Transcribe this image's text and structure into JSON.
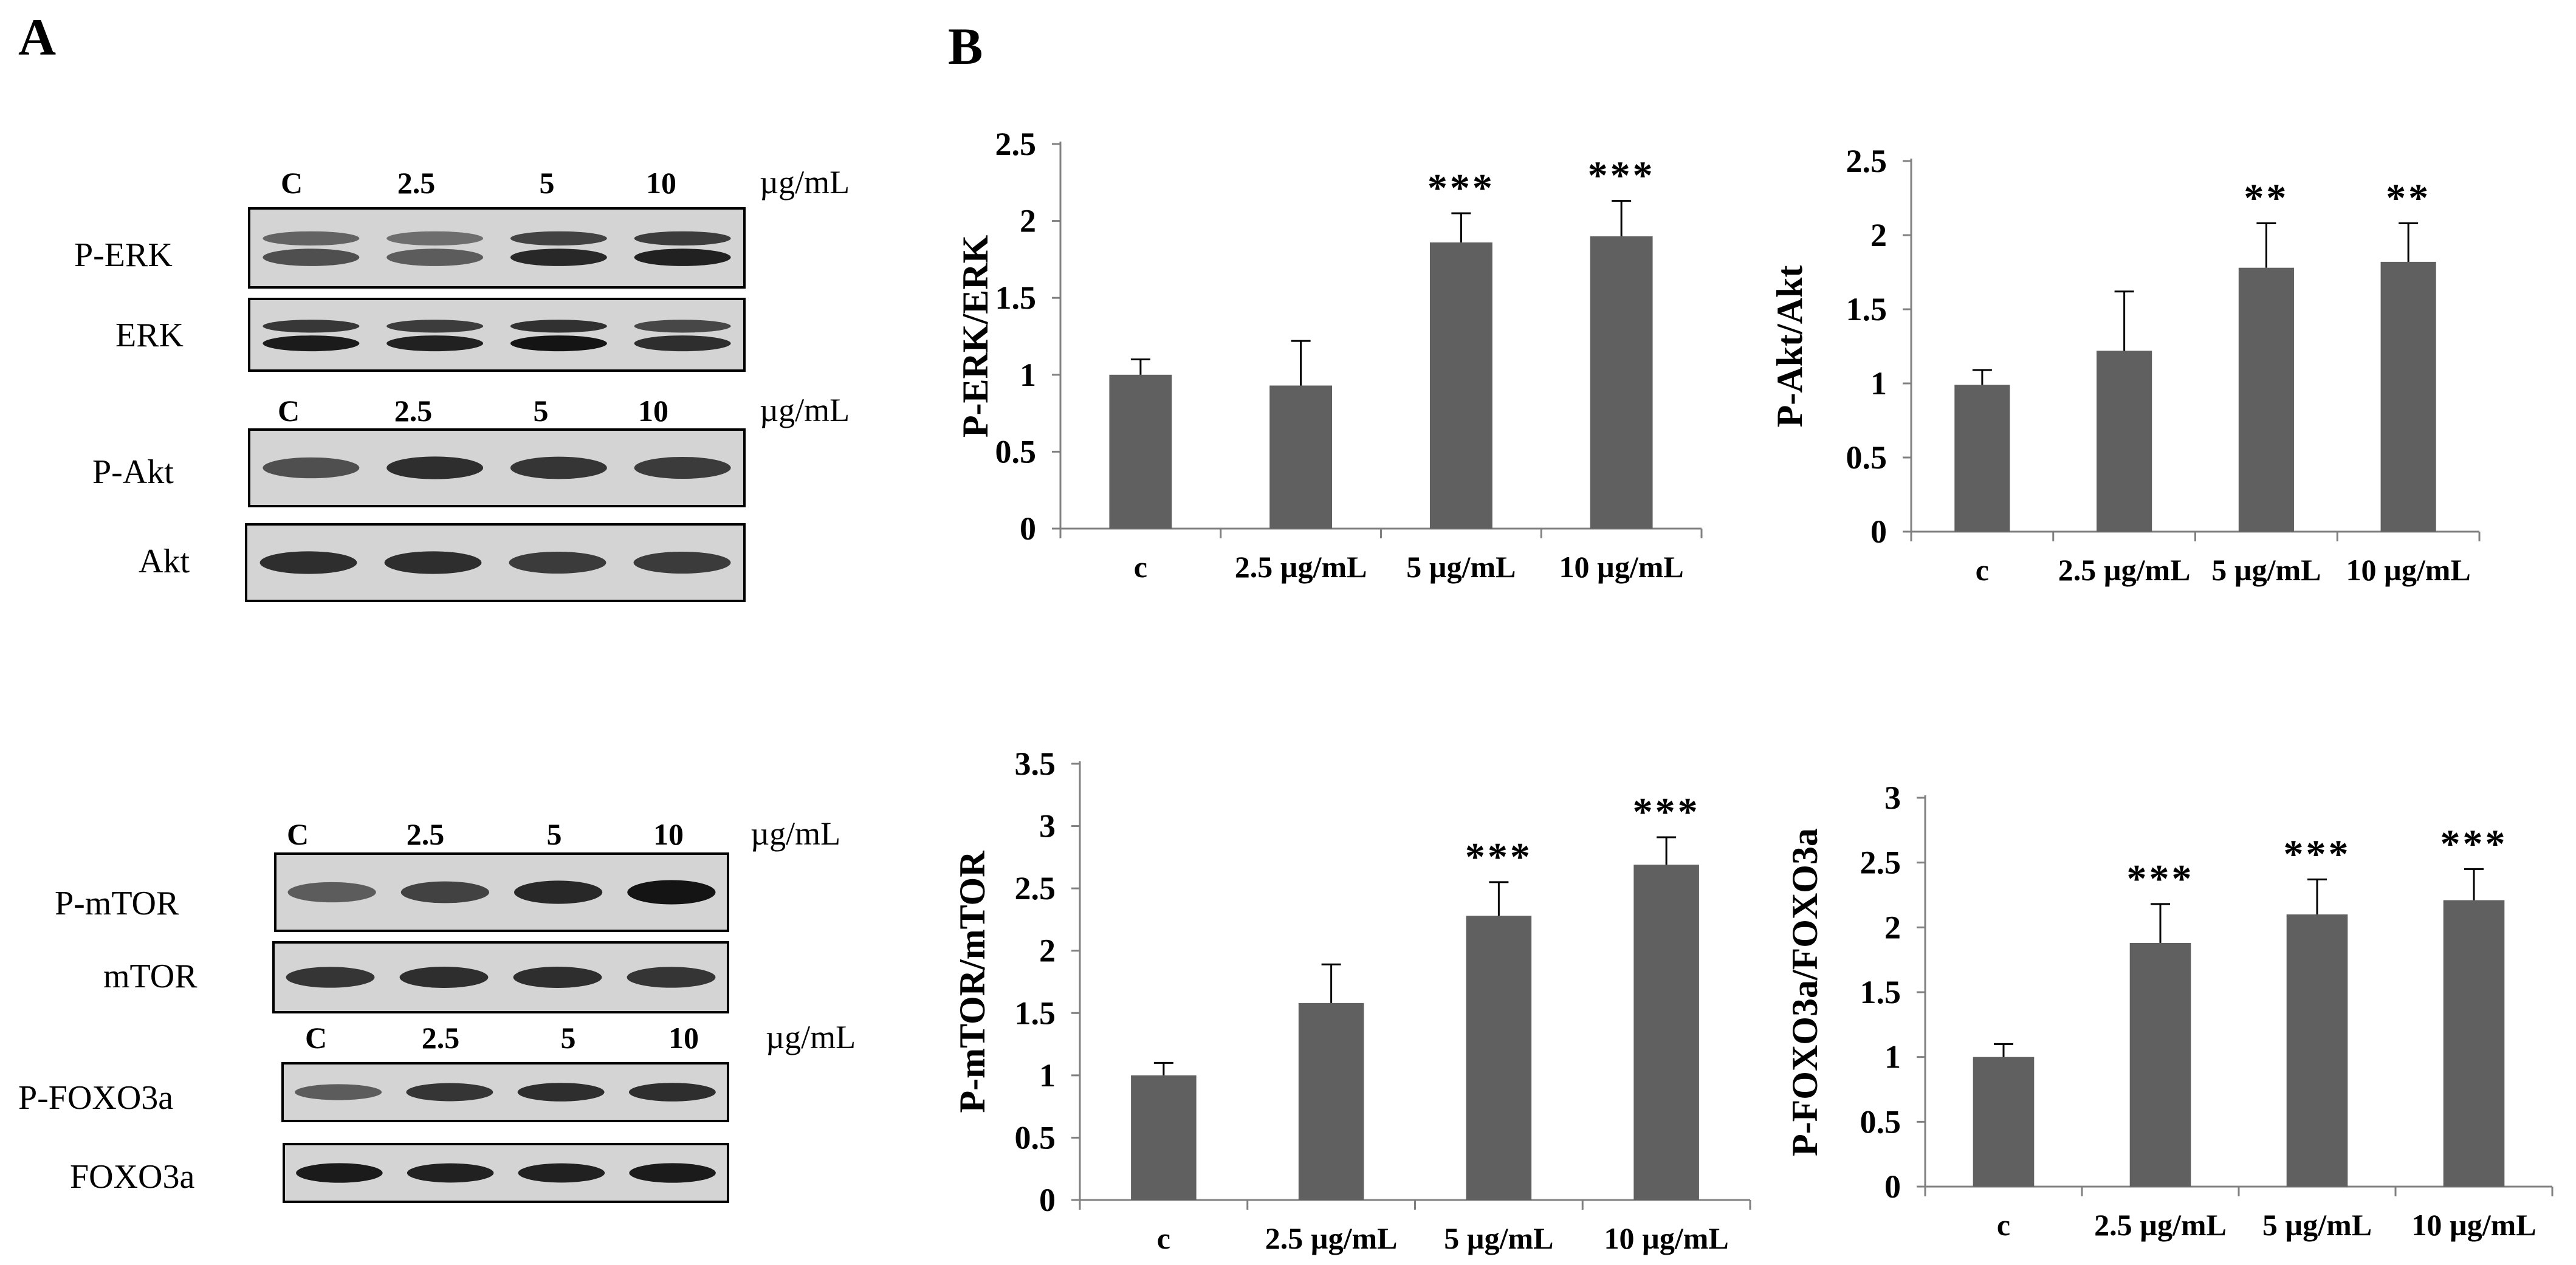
{
  "panels": {
    "a_label": "A",
    "b_label": "B"
  },
  "blots": [
    {
      "lanes": [
        "C",
        "2.5",
        "5",
        "10"
      ],
      "unit": "µg/mL",
      "bands": [
        {
          "name": "P-ERK",
          "intensity": [
            0.55,
            0.45,
            0.85,
            0.9
          ],
          "doublet": true
        },
        {
          "name": "ERK",
          "intensity": [
            0.95,
            0.9,
            1.0,
            0.8
          ],
          "doublet": true
        }
      ]
    },
    {
      "lanes": [
        "C",
        "2.5",
        "5",
        "10"
      ],
      "unit": "µg/mL",
      "bands": [
        {
          "name": "P-Akt",
          "intensity": [
            0.55,
            0.8,
            0.75,
            0.7
          ],
          "doublet": false
        },
        {
          "name": "Akt",
          "intensity": [
            0.8,
            0.8,
            0.7,
            0.7
          ],
          "doublet": false
        }
      ]
    },
    {
      "lanes": [
        "C",
        "2.5",
        "5",
        "10"
      ],
      "unit": "µg/mL",
      "bands": [
        {
          "name": "P-mTOR",
          "intensity": [
            0.45,
            0.65,
            0.85,
            1.0
          ],
          "doublet": false
        },
        {
          "name": "mTOR",
          "intensity": [
            0.75,
            0.8,
            0.8,
            0.75
          ],
          "doublet": false
        }
      ]
    },
    {
      "lanes": [
        "C",
        "2.5",
        "5",
        "10"
      ],
      "unit": "µg/mL",
      "bands": [
        {
          "name": "P-FOXO3a",
          "intensity": [
            0.45,
            0.75,
            0.8,
            0.8
          ],
          "doublet": false
        },
        {
          "name": "FOXO3a",
          "intensity": [
            0.95,
            0.9,
            0.9,
            0.95
          ],
          "doublet": false
        }
      ]
    }
  ],
  "bar_color": "#606060",
  "chart_data": [
    {
      "type": "bar",
      "ylabel": "P-ERK/ERK",
      "xlabel": "",
      "categories": [
        "c",
        "2.5 µg/mL",
        "5 µg/mL",
        "10 µg/mL"
      ],
      "values": [
        1.0,
        0.93,
        1.86,
        1.9
      ],
      "errors": [
        0.1,
        0.29,
        0.19,
        0.23
      ],
      "significance": [
        "",
        "",
        "***",
        "***"
      ],
      "ylim": [
        0,
        2.5
      ],
      "yticks": [
        "0",
        "0.5",
        "1",
        "1.5",
        "2",
        "2.5"
      ]
    },
    {
      "type": "bar",
      "ylabel": "P-Akt/Akt",
      "xlabel": "",
      "categories": [
        "c",
        "2.5 µg/mL",
        "5 µg/mL",
        "10 µg/mL"
      ],
      "values": [
        0.99,
        1.22,
        1.78,
        1.82
      ],
      "errors": [
        0.1,
        0.4,
        0.3,
        0.26
      ],
      "significance": [
        "",
        "",
        "**",
        "**"
      ],
      "ylim": [
        0,
        2.5
      ],
      "yticks": [
        "0",
        "0.5",
        "1",
        "1.5",
        "2",
        "2.5"
      ]
    },
    {
      "type": "bar",
      "ylabel": "P-mTOR/mTOR",
      "xlabel": "",
      "categories": [
        "c",
        "2.5 µg/mL",
        "5 µg/mL",
        "10 µg/mL"
      ],
      "values": [
        1.0,
        1.58,
        2.28,
        2.69
      ],
      "errors": [
        0.1,
        0.31,
        0.27,
        0.22
      ],
      "significance": [
        "",
        "",
        "***",
        "***"
      ],
      "ylim": [
        0,
        3.5
      ],
      "yticks": [
        "0",
        "0.5",
        "1",
        "1.5",
        "2",
        "2.5",
        "3",
        "3.5"
      ]
    },
    {
      "type": "bar",
      "ylabel": "P-FOXO3a/FOXO3a",
      "xlabel": "",
      "categories": [
        "c",
        "2.5 µg/mL",
        "5 µg/mL",
        "10 µg/mL"
      ],
      "values": [
        1.0,
        1.88,
        2.1,
        2.21
      ],
      "errors": [
        0.1,
        0.3,
        0.27,
        0.24
      ],
      "significance": [
        "",
        "***",
        "***",
        "***"
      ],
      "ylim": [
        0,
        3
      ],
      "yticks": [
        "0",
        "0.5",
        "1",
        "1.5",
        "2",
        "2.5",
        "3"
      ]
    }
  ]
}
